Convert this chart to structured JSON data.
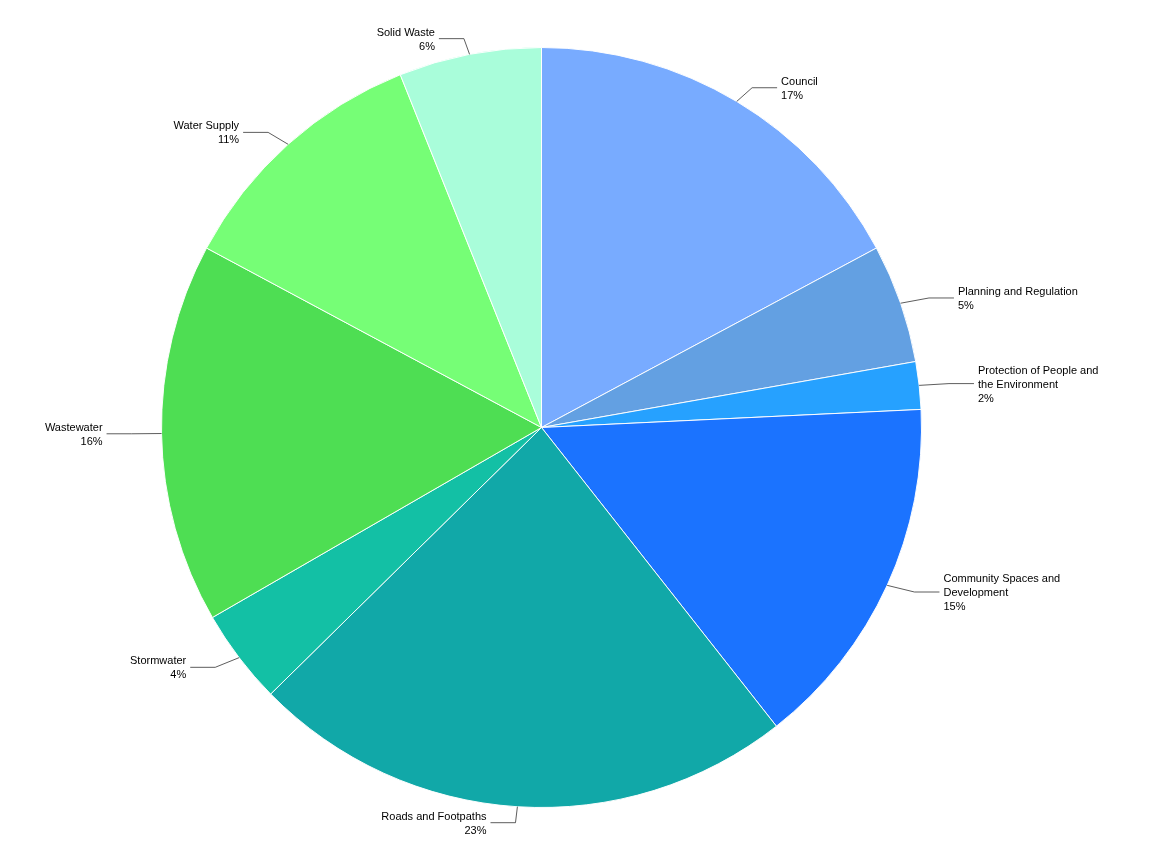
{
  "chart_data": {
    "type": "pie",
    "categories": [
      "Council",
      "Planning and Regulation",
      "Protection of People and the Environment",
      "Community Spaces and Development",
      "Roads and Footpaths",
      "Stormwater",
      "Wastewater",
      "Water Supply",
      "Solid Waste"
    ],
    "values": [
      17,
      5,
      2,
      15,
      23,
      4,
      16,
      11,
      6
    ],
    "value_labels": [
      "17%",
      "5%",
      "2%",
      "15%",
      "23%",
      "4%",
      "16%",
      "11%",
      "6%"
    ],
    "colors": [
      "#71a6ff",
      "#5b9be0",
      "#1a9cff",
      "#0f6cff",
      "#04a3a3",
      "#06bda0",
      "#45dc4a",
      "#6ffe6f",
      "#a4fdd8"
    ]
  }
}
